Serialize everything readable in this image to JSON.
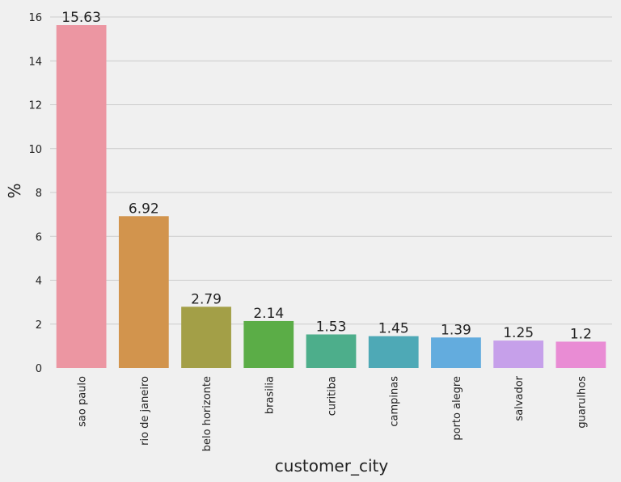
{
  "chart_data": {
    "type": "bar",
    "title": "",
    "xlabel": "customer_city",
    "ylabel": "%",
    "ylim": [
      0,
      16.5
    ],
    "yticks": [
      0,
      2,
      4,
      6,
      8,
      10,
      12,
      14,
      16
    ],
    "grid": "horizontal",
    "categories": [
      "sao paulo",
      "rio de janeiro",
      "belo horizonte",
      "brasilia",
      "curitiba",
      "campinas",
      "porto alegre",
      "salvador",
      "guarulhos"
    ],
    "values": [
      15.63,
      6.92,
      2.79,
      2.14,
      1.53,
      1.45,
      1.39,
      1.25,
      1.2
    ],
    "data_labels": [
      "15.63",
      "6.92",
      "2.79",
      "2.14",
      "1.53",
      "1.45",
      "1.39",
      "1.25",
      "1.2"
    ],
    "colors": [
      "#ec96a2",
      "#d2944d",
      "#a39f47",
      "#5bad47",
      "#4dae8b",
      "#4ea9b6",
      "#63acde",
      "#c6a0ea",
      "#e98cd4"
    ]
  }
}
